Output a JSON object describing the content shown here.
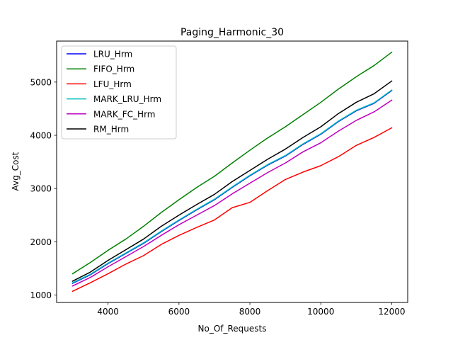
{
  "chart_data": {
    "type": "line",
    "title": "Paging_Harmonic_30",
    "xlabel": "No_Of_Requests",
    "ylabel": "Avg_Cost",
    "xlim": [
      2550,
      12450
    ],
    "ylim": [
      860,
      5770
    ],
    "x_ticks": [
      4000,
      6000,
      8000,
      10000,
      12000
    ],
    "y_ticks": [
      1000,
      2000,
      3000,
      4000,
      5000
    ],
    "grid": false,
    "legend_position": "upper-left",
    "x": [
      3000,
      3500,
      4000,
      4500,
      5000,
      5500,
      6000,
      6500,
      7000,
      7500,
      8000,
      8500,
      9000,
      9500,
      10000,
      10500,
      11000,
      11500,
      12000
    ],
    "series": [
      {
        "name": "LRU_Hrm",
        "color": "#0000ff",
        "values": [
          1220,
          1380,
          1590,
          1780,
          1970,
          2190,
          2400,
          2600,
          2790,
          3020,
          3240,
          3440,
          3610,
          3830,
          4020,
          4260,
          4460,
          4600,
          4840
        ]
      },
      {
        "name": "FIFO_Hrm",
        "color": "#008000",
        "values": [
          1400,
          1610,
          1840,
          2050,
          2290,
          2550,
          2790,
          3020,
          3230,
          3480,
          3720,
          3950,
          4160,
          4390,
          4620,
          4870,
          5100,
          5310,
          5560
        ]
      },
      {
        "name": "LFU_Hrm",
        "color": "#ff0000",
        "values": [
          1070,
          1230,
          1400,
          1580,
          1740,
          1950,
          2120,
          2270,
          2410,
          2640,
          2740,
          2960,
          3170,
          3310,
          3430,
          3600,
          3810,
          3960,
          4140
        ]
      },
      {
        "name": "MARK_LRU_Hrm",
        "color": "#00bfbf",
        "values": [
          1230,
          1390,
          1600,
          1790,
          1980,
          2200,
          2410,
          2610,
          2800,
          3030,
          3250,
          3450,
          3620,
          3840,
          4030,
          4270,
          4470,
          4610,
          4850
        ]
      },
      {
        "name": "MARK_FC_Hrm",
        "color": "#bf00bf",
        "values": [
          1170,
          1330,
          1530,
          1720,
          1910,
          2120,
          2320,
          2500,
          2680,
          2900,
          3100,
          3300,
          3480,
          3690,
          3860,
          4080,
          4280,
          4440,
          4660
        ]
      },
      {
        "name": "RM_Hrm",
        "color": "#000000",
        "values": [
          1260,
          1430,
          1650,
          1850,
          2050,
          2290,
          2500,
          2700,
          2890,
          3130,
          3340,
          3550,
          3740,
          3960,
          4160,
          4410,
          4620,
          4780,
          5020
        ]
      }
    ]
  }
}
